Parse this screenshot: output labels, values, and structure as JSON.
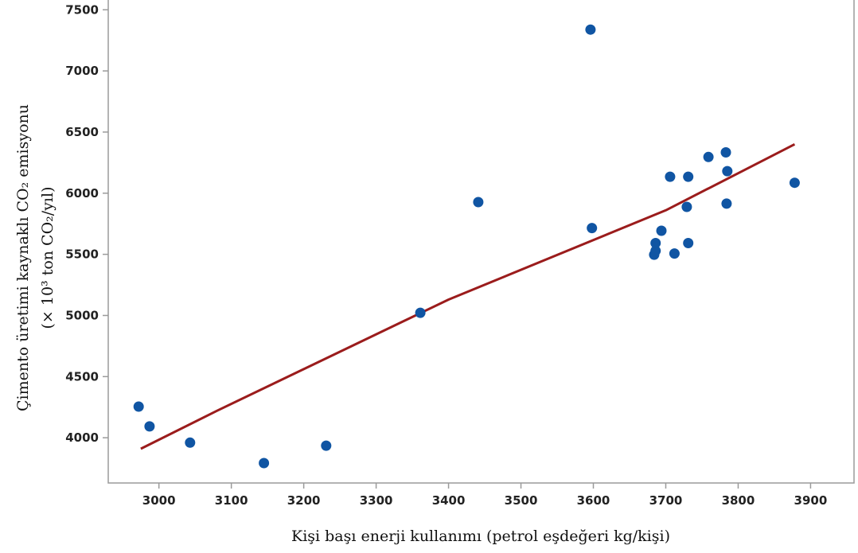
{
  "chart_data": {
    "type": "scatter",
    "xlabel": "Kişi başı enerji kullanımı (petrol eşdeğeri kg/kişi)",
    "ylabel_line1": "Çimento üretimi kaynaklı CO₂ emisyonu",
    "ylabel_line2": "(× 10³ ton CO₂/yıl)",
    "xlim": [
      2930,
      3960
    ],
    "ylim": [
      3630,
      7580
    ],
    "x_ticks": [
      3000,
      3100,
      3200,
      3300,
      3400,
      3500,
      3600,
      3700,
      3800,
      3900
    ],
    "y_ticks": [
      4000,
      4500,
      5000,
      5500,
      6000,
      6500,
      7000,
      7500
    ],
    "grid": false,
    "colors": {
      "points": "#1055a3",
      "fit_line": "#9b1c1c",
      "axis": "#9a9a9a"
    },
    "series": [
      {
        "kind": "points",
        "x": [
          2972,
          2987,
          3043,
          3145,
          3231,
          3361,
          3441,
          3596,
          3598,
          3684,
          3686,
          3686,
          3694,
          3706,
          3712,
          3729,
          3731,
          3731,
          3759,
          3783,
          3784,
          3785,
          3878
        ],
        "y": [
          4255,
          4093,
          3960,
          3793,
          3935,
          5022,
          5927,
          7338,
          5715,
          5497,
          5529,
          5592,
          5693,
          6135,
          5507,
          5888,
          5592,
          6135,
          6296,
          6334,
          5915,
          6180,
          6085
        ]
      },
      {
        "kind": "fit-line",
        "x": [
          2975,
          3080,
          3400,
          3700,
          3878
        ],
        "y": [
          3910,
          4220,
          5130,
          5860,
          6400
        ]
      }
    ]
  }
}
